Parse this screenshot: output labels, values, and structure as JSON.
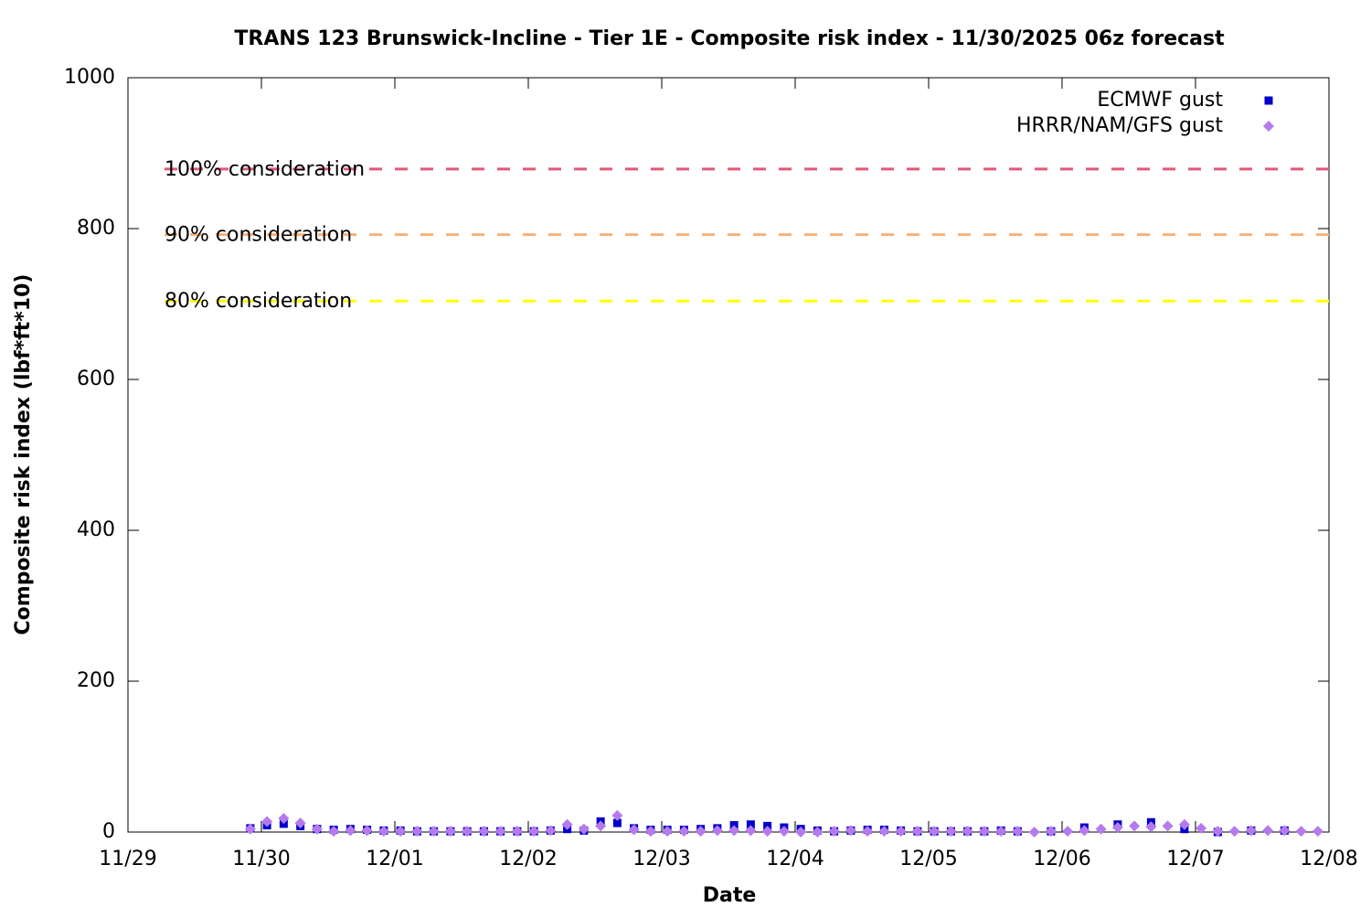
{
  "chart_data": {
    "type": "scatter",
    "title": "TRANS 123 Brunswick-Incline - Tier 1E - Composite risk index - 11/30/2025 06z forecast",
    "xlabel": "Date",
    "ylabel": "Composite risk index (lbf*ft*10)",
    "xlim": [
      0,
      9
    ],
    "ylim": [
      0,
      1000
    ],
    "xticks": [
      {
        "value": 0,
        "label": "11/29"
      },
      {
        "value": 1,
        "label": "11/30"
      },
      {
        "value": 2,
        "label": "12/01"
      },
      {
        "value": 3,
        "label": "12/02"
      },
      {
        "value": 4,
        "label": "12/03"
      },
      {
        "value": 5,
        "label": "12/04"
      },
      {
        "value": 6,
        "label": "12/05"
      },
      {
        "value": 7,
        "label": "12/06"
      },
      {
        "value": 8,
        "label": "12/07"
      },
      {
        "value": 9,
        "label": "12/08"
      }
    ],
    "yticks": [
      0,
      200,
      400,
      600,
      800,
      1000
    ],
    "legend": "top-right",
    "thresholds": [
      {
        "label": "100% consideration",
        "value": 879,
        "color": "#e05878"
      },
      {
        "label": "90% consideration",
        "value": 792,
        "color": "#f5b27a"
      },
      {
        "label": "80% consideration",
        "value": 704,
        "color": "#ffff00"
      }
    ],
    "series": [
      {
        "name": "ECMWF gust",
        "color": "#0000cc",
        "marker": "square",
        "x": [
          0.917,
          1.042,
          1.167,
          1.292,
          1.417,
          1.542,
          1.667,
          1.792,
          1.917,
          2.042,
          2.167,
          2.292,
          2.417,
          2.542,
          2.667,
          2.792,
          2.917,
          3.042,
          3.167,
          3.292,
          3.417,
          3.542,
          3.667,
          3.792,
          3.917,
          4.042,
          4.167,
          4.292,
          4.417,
          4.542,
          4.667,
          4.792,
          4.917,
          5.042,
          5.167,
          5.292,
          5.417,
          5.542,
          5.667,
          5.792,
          5.917,
          6.042,
          6.167,
          6.292,
          6.417,
          6.542,
          6.667,
          6.917,
          7.167,
          7.417,
          7.667,
          7.917,
          8.167,
          8.417,
          8.667
        ],
        "values": [
          5,
          9,
          11,
          8,
          4,
          3,
          4,
          3,
          2,
          2,
          1,
          1,
          1,
          1,
          1,
          1,
          1,
          1,
          2,
          4,
          2,
          14,
          12,
          5,
          3,
          3,
          3,
          4,
          5,
          9,
          10,
          8,
          6,
          4,
          2,
          1,
          2,
          3,
          3,
          2,
          1,
          1,
          1,
          1,
          1,
          2,
          1,
          1,
          6,
          10,
          13,
          4,
          0,
          2,
          2
        ]
      },
      {
        "name": "HRRR/NAM/GFS gust",
        "color": "#b57bee",
        "marker": "diamond",
        "x": [
          0.917,
          1.042,
          1.167,
          1.292,
          1.417,
          1.542,
          1.667,
          1.792,
          1.917,
          2.042,
          2.167,
          2.292,
          2.417,
          2.542,
          2.667,
          2.792,
          2.917,
          3.042,
          3.167,
          3.292,
          3.417,
          3.542,
          3.667,
          3.792,
          3.917,
          4.042,
          4.167,
          4.292,
          4.417,
          4.542,
          4.667,
          4.792,
          4.917,
          5.042,
          5.167,
          5.292,
          5.417,
          5.542,
          5.667,
          5.792,
          5.917,
          6.042,
          6.167,
          6.292,
          6.417,
          6.542,
          6.667,
          6.792,
          6.917,
          7.042,
          7.167,
          7.292,
          7.417,
          7.542,
          7.667,
          7.792,
          7.917,
          8.042,
          8.167,
          8.292,
          8.417,
          8.542,
          8.667,
          8.792,
          8.917
        ],
        "values": [
          4,
          14,
          18,
          12,
          4,
          1,
          2,
          2,
          1,
          1,
          1,
          1,
          1,
          1,
          1,
          1,
          1,
          1,
          2,
          10,
          4,
          8,
          22,
          3,
          1,
          1,
          1,
          1,
          2,
          2,
          2,
          1,
          1,
          0,
          0,
          1,
          2,
          1,
          1,
          1,
          1,
          1,
          1,
          1,
          1,
          1,
          1,
          0,
          1,
          1,
          2,
          4,
          6,
          8,
          7,
          8,
          10,
          5,
          1,
          1,
          2,
          2,
          2,
          1,
          1
        ]
      }
    ]
  }
}
